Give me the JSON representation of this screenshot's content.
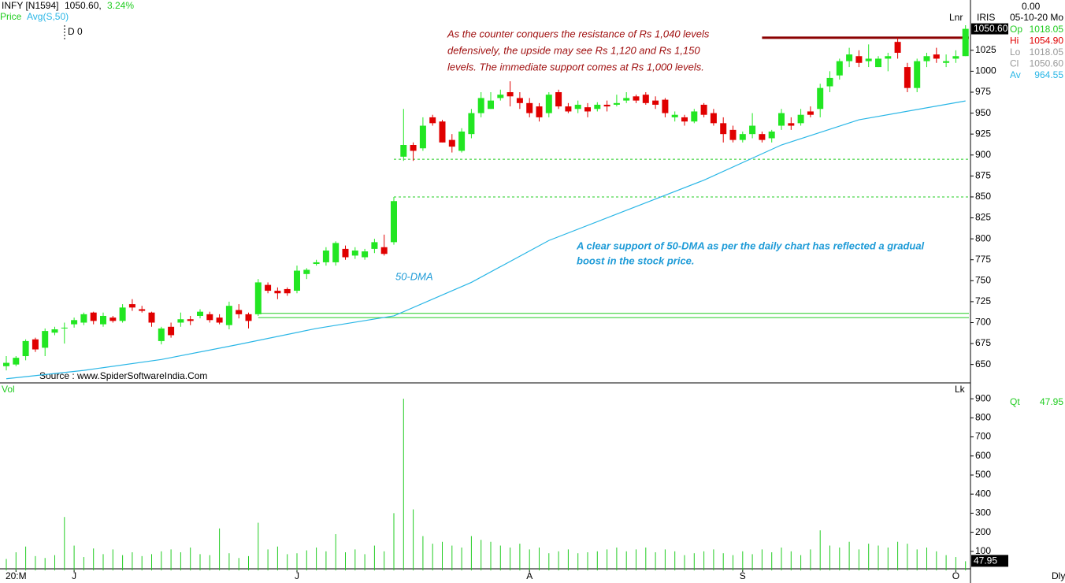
{
  "header": {
    "symbol": "INFY [N1594]",
    "price": "1050.60,",
    "change": "3.24%",
    "indicator": "Price",
    "ma_label": "Avg(S,50)",
    "marker": "D 0",
    "vol_label": "Vol",
    "source": "Source : www.SpiderSoftwareIndia.Com"
  },
  "info": {
    "top": "0.00",
    "date": "05-10-20 Mo",
    "scale": "Lnr",
    "name": "IRIS",
    "rows": [
      {
        "label": "Op",
        "value": "1018.05",
        "color": "#1fcc1f"
      },
      {
        "label": "Hi",
        "value": "1054.90",
        "color": "#e00000"
      },
      {
        "label": "Lo",
        "value": "1018.05",
        "color": "#999999"
      },
      {
        "label": "Cl",
        "value": "1050.60",
        "color": "#999999"
      },
      {
        "label": "Av",
        "value": "964.55",
        "color": "#29b6e6"
      }
    ],
    "qt": {
      "label": "Qt",
      "value": "47.95"
    },
    "lk": "Lk",
    "period": "Dly"
  },
  "chart_data": [
    {
      "type": "candlestick",
      "up_color": "#22e622",
      "down_color": "#e00000",
      "open": [
        648,
        650,
        660,
        680,
        670,
        688,
        693,
        698,
        700,
        712,
        698,
        706,
        702,
        722,
        716,
        712,
        678,
        695,
        700,
        704,
        708,
        710,
        706,
        697,
        715,
        710,
        710,
        745,
        738,
        740,
        738,
        758,
        770,
        772,
        772,
        788,
        780,
        778,
        788,
        790,
        796,
        898,
        912,
        908,
        945,
        940,
        918,
        905,
        925,
        950,
        955,
        968,
        975,
        968,
        962,
        958,
        950,
        975,
        958,
        955,
        957,
        955,
        960,
        960,
        965,
        970,
        972,
        965,
        966,
        945,
        945,
        940,
        960,
        950,
        938,
        930,
        918,
        925,
        925,
        920,
        935,
        938,
        938,
        952,
        955,
        982,
        995,
        1012,
        1018,
        1012,
        1005,
        1015,
        1035,
        1005,
        980,
        1012,
        1020,
        1010,
        1015,
        1018.05
      ],
      "high": [
        660,
        660,
        680,
        682,
        693,
        695,
        700,
        706,
        712,
        713,
        712,
        708,
        722,
        728,
        720,
        713,
        695,
        700,
        712,
        708,
        716,
        713,
        710,
        725,
        722,
        712,
        752,
        748,
        742,
        742,
        768,
        765,
        775,
        790,
        797,
        792,
        790,
        788,
        800,
        805,
        850,
        955,
        915,
        945,
        948,
        942,
        925,
        932,
        955,
        975,
        975,
        978,
        988,
        975,
        968,
        962,
        975,
        978,
        962,
        965,
        962,
        963,
        965,
        972,
        975,
        972,
        975,
        970,
        968,
        952,
        948,
        955,
        962,
        955,
        945,
        935,
        928,
        950,
        928,
        930,
        955,
        945,
        955,
        958,
        985,
        1000,
        1015,
        1028,
        1025,
        1032,
        1018,
        1022,
        1040,
        1010,
        1015,
        1022,
        1028,
        1020,
        1025,
        1054.9
      ],
      "low": [
        643,
        648,
        655,
        665,
        660,
        685,
        675,
        694,
        697,
        698,
        695,
        700,
        700,
        714,
        712,
        695,
        674,
        682,
        695,
        697,
        705,
        700,
        698,
        692,
        705,
        693,
        708,
        735,
        728,
        732,
        735,
        752,
        768,
        768,
        768,
        775,
        776,
        775,
        783,
        780,
        793,
        893,
        893,
        905,
        935,
        915,
        903,
        903,
        920,
        945,
        955,
        965,
        958,
        955,
        945,
        940,
        945,
        955,
        950,
        950,
        945,
        952,
        952,
        958,
        962,
        962,
        960,
        955,
        945,
        940,
        935,
        938,
        945,
        935,
        915,
        915,
        915,
        920,
        915,
        915,
        930,
        930,
        935,
        945,
        945,
        975,
        990,
        1005,
        1005,
        1005,
        1005,
        1000,
        1015,
        975,
        975,
        1005,
        1010,
        1005,
        1010,
        1018.05
      ],
      "close": [
        652,
        658,
        678,
        668,
        690,
        692,
        694,
        703,
        710,
        702,
        708,
        702,
        718,
        718,
        714,
        700,
        693,
        685,
        704,
        702,
        713,
        703,
        700,
        720,
        710,
        702,
        748,
        738,
        735,
        735,
        762,
        763,
        772,
        786,
        795,
        778,
        786,
        785,
        796,
        782,
        845,
        912,
        905,
        935,
        938,
        915,
        910,
        928,
        950,
        968,
        965,
        972,
        970,
        962,
        950,
        945,
        972,
        958,
        952,
        960,
        952,
        960,
        958,
        962,
        968,
        965,
        962,
        960,
        950,
        948,
        940,
        952,
        948,
        938,
        925,
        918,
        925,
        935,
        918,
        928,
        950,
        935,
        948,
        948,
        980,
        992,
        1012,
        1020,
        1010,
        1015,
        1015,
        1018,
        1022,
        980,
        1012,
        1018,
        1015,
        1012,
        1018,
        1050.6
      ],
      "ylim": [
        629,
        1085
      ],
      "yticks": [
        650,
        675,
        700,
        725,
        750,
        775,
        800,
        825,
        850,
        875,
        900,
        925,
        950,
        975,
        1000,
        1025
      ],
      "last": {
        "value": 1050.6,
        "label": "1050.60"
      },
      "xticks": [
        {
          "value": 1,
          "label": "20:M"
        },
        {
          "value": 7,
          "label": "J"
        },
        {
          "value": 30,
          "label": "J"
        },
        {
          "value": 54,
          "label": "A"
        },
        {
          "value": 76,
          "label": "S"
        },
        {
          "value": 98,
          "label": "O"
        }
      ],
      "ma": {
        "name": "50-DMA",
        "color": "#29b6e6",
        "x": [
          0,
          8,
          16,
          24,
          32,
          40,
          48,
          56,
          64,
          72,
          80,
          88,
          99
        ],
        "values": [
          633,
          643,
          656,
          674,
          693,
          708,
          748,
          798,
          834,
          870,
          912,
          942,
          964.55
        ]
      },
      "levels": [
        {
          "value": 1040,
          "x0": 78,
          "color": "#8b0000",
          "width": 3,
          "dashed": false
        },
        {
          "value": 895,
          "x0": 40,
          "color": "#22cc22",
          "width": 1,
          "dashed": true
        },
        {
          "value": 850,
          "x0": 40,
          "color": "#22cc22",
          "width": 1,
          "dashed": true
        },
        {
          "value": 711,
          "x0": 26,
          "color": "#22cc22",
          "width": 1,
          "dashed": false
        },
        {
          "value": 706,
          "x0": 26,
          "color": "#22cc22",
          "width": 1,
          "dashed": false
        }
      ],
      "annotations": {
        "resistance": [
          "As the counter conquers the resistance of Rs 1,040 levels",
          "defensively, the upside may see Rs 1,120 and Rs 1,150",
          "levels. The immediate support comes at Rs 1,000 levels."
        ],
        "support": [
          "A clear support of 50-DMA as per the daily chart has reflected a gradual",
          "boost in the stock price."
        ]
      }
    },
    {
      "type": "bar",
      "color": "#22cc22",
      "values": [
        60,
        95,
        125,
        75,
        65,
        80,
        280,
        130,
        70,
        115,
        85,
        110,
        80,
        95,
        75,
        85,
        100,
        110,
        95,
        120,
        85,
        80,
        220,
        90,
        65,
        75,
        250,
        110,
        125,
        85,
        90,
        105,
        120,
        100,
        190,
        95,
        110,
        85,
        130,
        100,
        300,
        900,
        320,
        180,
        140,
        150,
        130,
        120,
        180,
        160,
        150,
        130,
        120,
        140,
        110,
        120,
        90,
        100,
        110,
        90,
        95,
        100,
        110,
        120,
        100,
        110,
        120,
        95,
        110,
        100,
        80,
        90,
        100,
        110,
        90,
        80,
        100,
        85,
        110,
        95,
        120,
        100,
        80,
        110,
        210,
        130,
        120,
        150,
        110,
        140,
        130,
        120,
        150,
        140,
        110,
        120,
        100,
        80,
        70,
        47.95
      ],
      "ylim": [
        0,
        975
      ],
      "yticks": [
        100,
        200,
        300,
        400,
        500,
        600,
        700,
        800,
        900
      ],
      "last": {
        "value": 47.95,
        "label": "47.95"
      }
    }
  ]
}
